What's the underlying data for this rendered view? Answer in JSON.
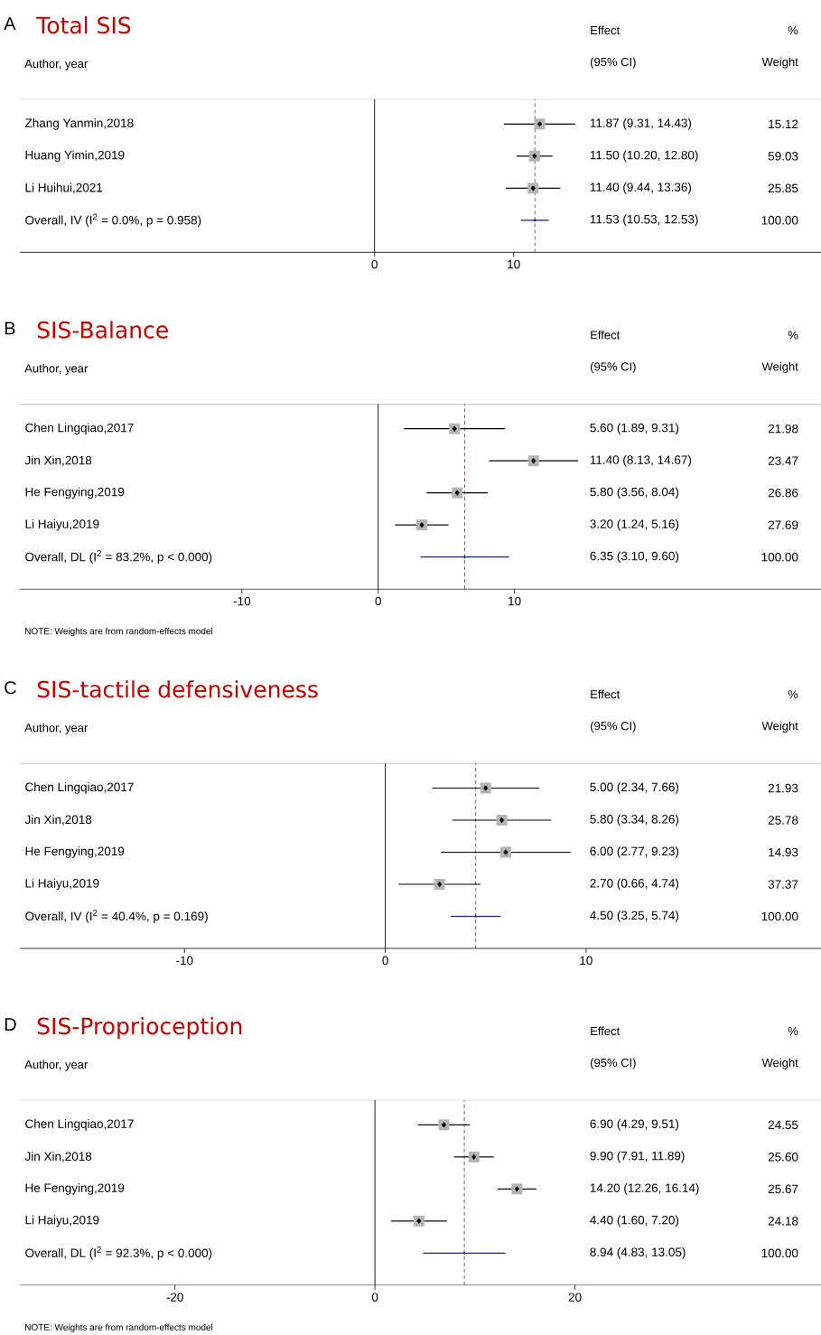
{
  "chart_data": [
    {
      "type": "scatter",
      "orientation": "horizontal",
      "title": "Total SIS",
      "categories": [
        "Zhang Yanmin,2018",
        "Huang Yimin,2019",
        "Li Huihui,2021",
        "Overall, IV (I$^{2}$ = 0.0%, p = 0.958)"
      ],
      "series": [
        {
          "color": "#b4b4b4",
          "marker": "square",
          "values": [
            11.87,
            11.5,
            11.4,
            null
          ],
          "errors": [
            [
              9.31,
              14.43
            ],
            [
              10.2,
              12.8
            ],
            [
              9.44,
              13.36
            ],
            null
          ]
        },
        {
          "color": "#1c2a7a",
          "marker": "diamond",
          "values": [
            null,
            null,
            null,
            11.53
          ],
          "errors": [
            null,
            null,
            null,
            [
              10.53,
              12.53
            ]
          ]
        }
      ],
      "xlim": [
        -25.5,
        32.1
      ],
      "xticks": [
        0,
        10
      ],
      "ref_lines": [
        {
          "axis": "x",
          "value": 0,
          "color": "#000000",
          "line_style": "solid"
        },
        {
          "axis": "x",
          "value": 11.53,
          "color": "#9b3b5a",
          "line_style": "dashed"
        }
      ],
      "annotations": [
        "A",
        "Effect",
        "%",
        "Author, year",
        "(95% CI)",
        "Weight",
        "11.87 (9.31, 14.43)",
        "11.50 (10.20, 12.80)",
        "11.40 (9.44, 13.36)",
        "11.53 (10.53, 12.53)",
        "15.12",
        "59.03",
        "25.85",
        "100.00"
      ]
    },
    {
      "type": "scatter",
      "orientation": "horizontal",
      "title": "SIS-Balance",
      "categories": [
        "Chen Lingqiao,2017",
        "Jin Xin,2018",
        "He Fengying,2019",
        "Li Haiyu,2019",
        "Overall, DL (I$^{2}$ = 83.2%, p < 0.000)"
      ],
      "series": [
        {
          "color": "#b4b4b4",
          "marker": "square",
          "values": [
            5.6,
            11.4,
            5.8,
            3.2,
            null
          ],
          "errors": [
            [
              1.89,
              9.31
            ],
            [
              8.13,
              14.67
            ],
            [
              3.56,
              8.04
            ],
            [
              1.24,
              5.16
            ],
            null
          ]
        },
        {
          "color": "#1c2a7a",
          "marker": "diamond",
          "values": [
            null,
            null,
            null,
            null,
            6.35
          ],
          "errors": [
            null,
            null,
            null,
            null,
            [
              3.1,
              9.6
            ]
          ]
        }
      ],
      "xlim": [
        -26.3,
        32.5
      ],
      "xticks": [
        -10,
        0,
        10
      ],
      "ref_lines": [
        {
          "axis": "x",
          "value": 0,
          "color": "#000000",
          "line_style": "solid"
        },
        {
          "axis": "x",
          "value": 6.35,
          "color": "#9b3b5a",
          "line_style": "dashed"
        }
      ],
      "annotations": [
        "B",
        "Effect",
        "%",
        "Author, year",
        "(95% CI)",
        "Weight",
        "5.60 (1.89, 9.31)",
        "11.40 (8.13, 14.67)",
        "5.80 (3.56, 8.04)",
        "3.20 (1.24, 5.16)",
        "6.35 (3.10, 9.60)",
        "21.98",
        "23.47",
        "26.86",
        "27.69",
        "100.00",
        "NOTE: Weights are from random-effects model"
      ]
    },
    {
      "type": "scatter",
      "orientation": "horizontal",
      "title": "SIS-tactile defensiveness",
      "categories": [
        "Chen Lingqiao,2017",
        "Jin Xin,2018",
        "He Fengying,2019",
        "Li Haiyu,2019",
        "Overall, IV (I$^{2}$ = 40.4%, p = 0.169)"
      ],
      "series": [
        {
          "color": "#b4b4b4",
          "marker": "square",
          "values": [
            5.0,
            5.8,
            6.0,
            2.7,
            null
          ],
          "errors": [
            [
              2.34,
              7.66
            ],
            [
              3.34,
              8.26
            ],
            [
              2.77,
              9.23
            ],
            [
              0.66,
              4.74
            ],
            null
          ]
        },
        {
          "color": "#1c2a7a",
          "marker": "diamond",
          "values": [
            null,
            null,
            null,
            null,
            4.5
          ],
          "errors": [
            null,
            null,
            null,
            null,
            [
              3.25,
              5.74
            ]
          ]
        }
      ],
      "xlim": [
        -18.2,
        21.7
      ],
      "xticks": [
        -10,
        0,
        10
      ],
      "ref_lines": [
        {
          "axis": "x",
          "value": 0,
          "color": "#000000",
          "line_style": "solid"
        },
        {
          "axis": "x",
          "value": 4.5,
          "color": "#9b3b5a",
          "line_style": "dashed"
        }
      ],
      "annotations": [
        "C",
        "Effect",
        "%",
        "Author, year",
        "(95% CI)",
        "Weight",
        "5.00 (2.34, 7.66)",
        "5.80 (3.34, 8.26)",
        "6.00 (2.77, 9.23)",
        "2.70 (0.66, 4.74)",
        "4.50 (3.25, 5.74)",
        "21.93",
        "25.78",
        "14.93",
        "37.37",
        "100.00"
      ]
    },
    {
      "type": "scatter",
      "orientation": "horizontal",
      "title": "SIS-Proprioception",
      "categories": [
        "Chen Lingqiao,2017",
        "Jin Xin,2018",
        "He Fengying,2019",
        "Li Haiyu,2019",
        "Overall, DL (I$^{2}$ = 92.3%, p < 0.000)"
      ],
      "series": [
        {
          "color": "#b4b4b4",
          "marker": "square",
          "values": [
            6.9,
            9.9,
            14.2,
            4.4,
            null
          ],
          "errors": [
            [
              4.29,
              9.51
            ],
            [
              7.91,
              11.89
            ],
            [
              12.26,
              16.14
            ],
            [
              1.6,
              7.2
            ],
            null
          ]
        },
        {
          "color": "#1c2a7a",
          "marker": "diamond",
          "values": [
            null,
            null,
            null,
            null,
            8.94
          ],
          "errors": [
            null,
            null,
            null,
            null,
            [
              4.83,
              13.05
            ]
          ]
        }
      ],
      "xlim": [
        -35.5,
        44.6
      ],
      "xticks": [
        -20,
        0,
        20
      ],
      "ref_lines": [
        {
          "axis": "x",
          "value": 0,
          "color": "#000000",
          "line_style": "solid"
        },
        {
          "axis": "x",
          "value": 8.94,
          "color": "#9b3b5a",
          "line_style": "dashed"
        }
      ],
      "annotations": [
        "D",
        "Effect",
        "%",
        "Author, year",
        "(95% CI)",
        "Weight",
        "6.90 (4.29, 9.51)",
        "9.90 (7.91, 11.89)",
        "14.20 (12.26, 16.14)",
        "4.40 (1.60, 7.20)",
        "8.94 (4.83, 13.05)",
        "24.55",
        "25.60",
        "25.67",
        "24.18",
        "100.00",
        "NOTE: Weights are from random-effects model"
      ]
    }
  ]
}
